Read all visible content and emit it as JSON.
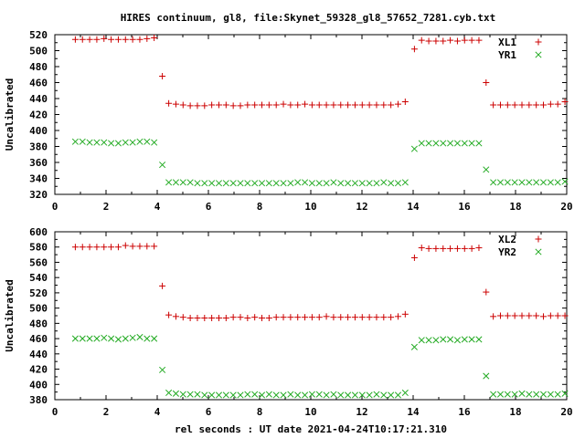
{
  "chart_data": {
    "title": "HIRES continuum, gl8, file:Skynet_59328_gl8_57652_7281.cyb.txt",
    "xlabel": "rel seconds : UT date 2021-04-24T10:17:21.310",
    "colors": {
      "plus": "#cc0000",
      "cross": "#22aa22",
      "axis": "#000000"
    },
    "panels": [
      {
        "type": "scatter",
        "ylabel": "Uncalibrated",
        "xlim": [
          0,
          20
        ],
        "ylim": [
          320,
          520
        ],
        "xticks": [
          0,
          2,
          4,
          6,
          8,
          10,
          12,
          14,
          16,
          18,
          20
        ],
        "yticks": [
          320,
          340,
          360,
          380,
          400,
          420,
          440,
          460,
          480,
          500,
          520
        ],
        "legend_position": "top-right",
        "series": [
          {
            "name": "XL1",
            "marker": "plus",
            "x": [
              0.8,
              1.08,
              1.36,
              1.64,
              1.92,
              2.2,
              2.48,
              2.76,
              3.04,
              3.32,
              3.6,
              3.88,
              4.2,
              4.45,
              4.73,
              5.01,
              5.29,
              5.57,
              5.85,
              6.13,
              6.41,
              6.69,
              6.97,
              7.25,
              7.53,
              7.81,
              8.09,
              8.37,
              8.65,
              8.93,
              9.21,
              9.49,
              9.77,
              10.05,
              10.33,
              10.61,
              10.89,
              11.17,
              11.45,
              11.73,
              12.01,
              12.29,
              12.57,
              12.85,
              13.13,
              13.41,
              13.69,
              14.05,
              14.33,
              14.61,
              14.89,
              15.17,
              15.45,
              15.73,
              16.01,
              16.29,
              16.57,
              16.85,
              17.13,
              17.41,
              17.69,
              17.97,
              18.25,
              18.53,
              18.81,
              19.09,
              19.37,
              19.65,
              19.93
            ],
            "y": [
              514,
              514,
              514,
              514,
              515,
              514,
              514,
              514,
              514,
              514,
              515,
              516,
              468,
              434,
              433,
              432,
              431,
              431,
              431,
              432,
              432,
              432,
              431,
              431,
              432,
              432,
              432,
              432,
              432,
              433,
              432,
              432,
              433,
              432,
              432,
              432,
              432,
              432,
              432,
              432,
              432,
              432,
              432,
              432,
              432,
              433,
              436,
              502,
              513,
              512,
              512,
              512,
              513,
              512,
              513,
              513,
              513,
              460,
              432,
              432,
              432,
              432,
              432,
              432,
              432,
              432,
              433,
              433,
              436
            ]
          },
          {
            "name": "YR1",
            "marker": "cross",
            "x": [
              0.8,
              1.08,
              1.36,
              1.64,
              1.92,
              2.2,
              2.48,
              2.76,
              3.04,
              3.32,
              3.6,
              3.88,
              4.2,
              4.45,
              4.73,
              5.01,
              5.29,
              5.57,
              5.85,
              6.13,
              6.41,
              6.69,
              6.97,
              7.25,
              7.53,
              7.81,
              8.09,
              8.37,
              8.65,
              8.93,
              9.21,
              9.49,
              9.77,
              10.05,
              10.33,
              10.61,
              10.89,
              11.17,
              11.45,
              11.73,
              12.01,
              12.29,
              12.57,
              12.85,
              13.13,
              13.41,
              13.69,
              14.05,
              14.33,
              14.61,
              14.89,
              15.17,
              15.45,
              15.73,
              16.01,
              16.29,
              16.57,
              16.85,
              17.13,
              17.41,
              17.69,
              17.97,
              18.25,
              18.53,
              18.81,
              19.09,
              19.37,
              19.65,
              19.93
            ],
            "y": [
              386,
              386,
              385,
              385,
              385,
              384,
              384,
              385,
              385,
              386,
              386,
              385,
              357,
              335,
              335,
              335,
              335,
              334,
              334,
              334,
              334,
              334,
              334,
              334,
              334,
              334,
              334,
              334,
              334,
              334,
              334,
              335,
              335,
              334,
              334,
              334,
              335,
              334,
              334,
              334,
              334,
              334,
              334,
              335,
              334,
              334,
              335,
              377,
              384,
              384,
              384,
              384,
              384,
              384,
              384,
              384,
              384,
              351,
              335,
              335,
              335,
              335,
              335,
              335,
              335,
              335,
              335,
              335,
              336
            ]
          }
        ]
      },
      {
        "type": "scatter",
        "ylabel": "Uncalibrated",
        "xlim": [
          0,
          20
        ],
        "ylim": [
          380,
          600
        ],
        "xticks": [
          0,
          2,
          4,
          6,
          8,
          10,
          12,
          14,
          16,
          18,
          20
        ],
        "yticks": [
          380,
          400,
          420,
          440,
          460,
          480,
          500,
          520,
          540,
          560,
          580,
          600
        ],
        "legend_position": "top-right",
        "series": [
          {
            "name": "XL2",
            "marker": "plus",
            "x": [
              0.8,
              1.08,
              1.36,
              1.64,
              1.92,
              2.2,
              2.48,
              2.76,
              3.04,
              3.32,
              3.6,
              3.88,
              4.2,
              4.45,
              4.73,
              5.01,
              5.29,
              5.57,
              5.85,
              6.13,
              6.41,
              6.69,
              6.97,
              7.25,
              7.53,
              7.81,
              8.09,
              8.37,
              8.65,
              8.93,
              9.21,
              9.49,
              9.77,
              10.05,
              10.33,
              10.61,
              10.89,
              11.17,
              11.45,
              11.73,
              12.01,
              12.29,
              12.57,
              12.85,
              13.13,
              13.41,
              13.69,
              14.05,
              14.33,
              14.61,
              14.89,
              15.17,
              15.45,
              15.73,
              16.01,
              16.29,
              16.57,
              16.85,
              17.13,
              17.41,
              17.69,
              17.97,
              18.25,
              18.53,
              18.81,
              19.09,
              19.37,
              19.65,
              19.93
            ],
            "y": [
              580,
              580,
              580,
              580,
              580,
              580,
              580,
              582,
              581,
              581,
              581,
              581,
              529,
              491,
              489,
              488,
              487,
              487,
              487,
              487,
              487,
              487,
              488,
              488,
              487,
              488,
              487,
              487,
              488,
              488,
              488,
              488,
              488,
              488,
              488,
              489,
              488,
              488,
              488,
              488,
              488,
              488,
              488,
              488,
              488,
              489,
              492,
              566,
              579,
              578,
              578,
              578,
              578,
              578,
              578,
              578,
              579,
              521,
              489,
              490,
              490,
              490,
              490,
              490,
              490,
              489,
              490,
              490,
              490
            ]
          },
          {
            "name": "YR2",
            "marker": "cross",
            "x": [
              0.8,
              1.08,
              1.36,
              1.64,
              1.92,
              2.2,
              2.48,
              2.76,
              3.04,
              3.32,
              3.6,
              3.88,
              4.2,
              4.45,
              4.73,
              5.01,
              5.29,
              5.57,
              5.85,
              6.13,
              6.41,
              6.69,
              6.97,
              7.25,
              7.53,
              7.81,
              8.09,
              8.37,
              8.65,
              8.93,
              9.21,
              9.49,
              9.77,
              10.05,
              10.33,
              10.61,
              10.89,
              11.17,
              11.45,
              11.73,
              12.01,
              12.29,
              12.57,
              12.85,
              13.13,
              13.41,
              13.69,
              14.05,
              14.33,
              14.61,
              14.89,
              15.17,
              15.45,
              15.73,
              16.01,
              16.29,
              16.57,
              16.85,
              17.13,
              17.41,
              17.69,
              17.97,
              18.25,
              18.53,
              18.81,
              19.09,
              19.37,
              19.65,
              19.93
            ],
            "y": [
              460,
              460,
              460,
              460,
              461,
              460,
              459,
              460,
              461,
              462,
              460,
              460,
              419,
              389,
              388,
              387,
              387,
              387,
              386,
              386,
              386,
              386,
              386,
              386,
              387,
              387,
              386,
              387,
              386,
              386,
              387,
              386,
              386,
              387,
              387,
              386,
              387,
              386,
              386,
              386,
              386,
              386,
              387,
              386,
              386,
              386,
              389,
              449,
              458,
              458,
              458,
              459,
              459,
              458,
              459,
              459,
              459,
              411,
              387,
              387,
              387,
              387,
              388,
              387,
              387,
              387,
              387,
              387,
              388
            ]
          }
        ]
      }
    ]
  }
}
